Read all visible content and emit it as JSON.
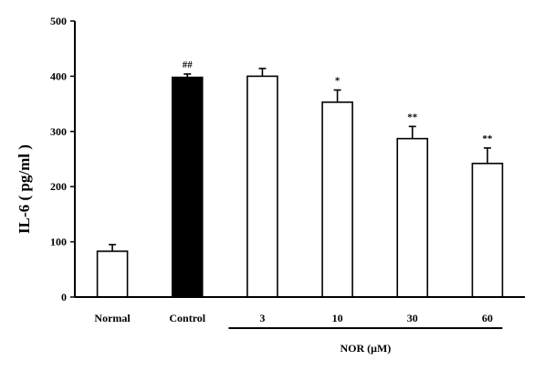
{
  "chart_data": {
    "type": "bar",
    "title": "",
    "xlabel": "",
    "ylabel": "IL-6 ( pg/ml )",
    "ylim": [
      0,
      500
    ],
    "yticks": [
      "0",
      "100",
      "200",
      "300",
      "400",
      "500"
    ],
    "categories": [
      "Normal",
      "Control",
      "3",
      "10",
      "30",
      "60"
    ],
    "values": [
      83,
      398,
      400,
      353,
      287,
      242
    ],
    "errors": [
      12,
      6,
      14,
      22,
      22,
      28
    ],
    "annotations": [
      "",
      "##",
      "",
      "*",
      "**",
      "**"
    ],
    "bar_fills": [
      "#ffffff",
      "#000000",
      "#ffffff",
      "#ffffff",
      "#ffffff",
      "#ffffff"
    ],
    "group_label": "NOR (μM)",
    "grid": false
  }
}
